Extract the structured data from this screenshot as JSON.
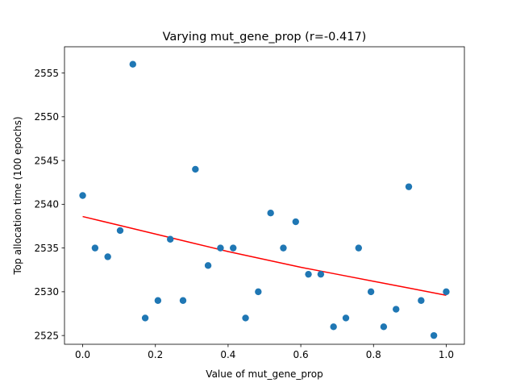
{
  "chart_data": {
    "type": "scatter",
    "title": "Varying mut_gene_prop (r=-0.417)",
    "xlabel": "Value of mut_gene_prop",
    "ylabel": "Top allocation time (100 epochs)",
    "xlim": [
      -0.05,
      1.05
    ],
    "ylim": [
      2524,
      2558
    ],
    "xticks": [
      0.0,
      0.2,
      0.4,
      0.6,
      0.8,
      1.0
    ],
    "xtick_labels": [
      "0.0",
      "0.2",
      "0.4",
      "0.6",
      "0.8",
      "1.0"
    ],
    "yticks": [
      2525,
      2530,
      2535,
      2540,
      2545,
      2550,
      2555
    ],
    "ytick_labels": [
      "2525",
      "2530",
      "2535",
      "2540",
      "2545",
      "2550",
      "2555"
    ],
    "grid": false,
    "series": [
      {
        "kind": "scatter",
        "color": "#1f77b4",
        "points": [
          {
            "x": 0.0,
            "y": 2541
          },
          {
            "x": 0.034,
            "y": 2535
          },
          {
            "x": 0.069,
            "y": 2534
          },
          {
            "x": 0.103,
            "y": 2537
          },
          {
            "x": 0.138,
            "y": 2556
          },
          {
            "x": 0.172,
            "y": 2527
          },
          {
            "x": 0.207,
            "y": 2529
          },
          {
            "x": 0.241,
            "y": 2536
          },
          {
            "x": 0.276,
            "y": 2529
          },
          {
            "x": 0.31,
            "y": 2544
          },
          {
            "x": 0.345,
            "y": 2533
          },
          {
            "x": 0.379,
            "y": 2535
          },
          {
            "x": 0.414,
            "y": 2535
          },
          {
            "x": 0.448,
            "y": 2527
          },
          {
            "x": 0.483,
            "y": 2530
          },
          {
            "x": 0.517,
            "y": 2539
          },
          {
            "x": 0.552,
            "y": 2535
          },
          {
            "x": 0.586,
            "y": 2538
          },
          {
            "x": 0.621,
            "y": 2532
          },
          {
            "x": 0.655,
            "y": 2532
          },
          {
            "x": 0.69,
            "y": 2526
          },
          {
            "x": 0.724,
            "y": 2527
          },
          {
            "x": 0.759,
            "y": 2535
          },
          {
            "x": 0.793,
            "y": 2530
          },
          {
            "x": 0.828,
            "y": 2526
          },
          {
            "x": 0.862,
            "y": 2528
          },
          {
            "x": 0.897,
            "y": 2542
          },
          {
            "x": 0.931,
            "y": 2529
          },
          {
            "x": 0.966,
            "y": 2525
          },
          {
            "x": 1.0,
            "y": 2530
          }
        ]
      },
      {
        "kind": "line",
        "color": "#ff0000",
        "points": [
          {
            "x": 0.0,
            "y": 2538.6
          },
          {
            "x": 0.1,
            "y": 2537.6
          },
          {
            "x": 0.2,
            "y": 2536.6
          },
          {
            "x": 0.3,
            "y": 2535.6
          },
          {
            "x": 0.4,
            "y": 2534.6
          },
          {
            "x": 0.5,
            "y": 2533.7
          },
          {
            "x": 0.6,
            "y": 2532.8
          },
          {
            "x": 0.7,
            "y": 2532.0
          },
          {
            "x": 0.8,
            "y": 2531.2
          },
          {
            "x": 0.9,
            "y": 2530.4
          },
          {
            "x": 1.0,
            "y": 2529.6
          }
        ]
      }
    ]
  }
}
